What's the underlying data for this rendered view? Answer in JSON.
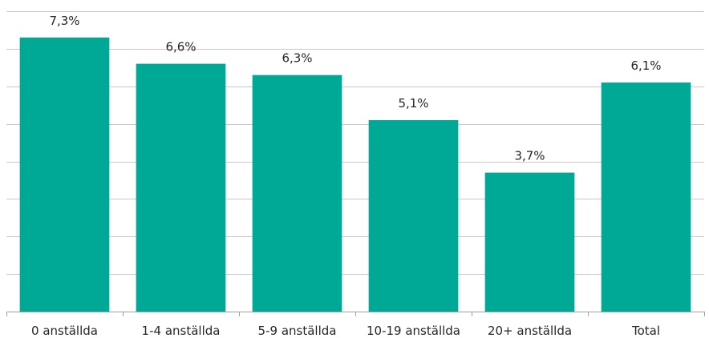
{
  "chart_data": {
    "type": "bar",
    "title": "",
    "xlabel": "",
    "ylabel": "",
    "categories": [
      "0 anställda",
      "1-4 anställda",
      "5-9 anställda",
      "10-19 anställda",
      "20+ anställda",
      "Total"
    ],
    "values": [
      7.3,
      6.6,
      6.3,
      5.1,
      3.7,
      6.1
    ],
    "data_labels": [
      "7,3%",
      "6,6%",
      "6,3%",
      "5,1%",
      "3,7%",
      "6,1%"
    ],
    "ylim": [
      0,
      8
    ],
    "y_grid_step": 1,
    "grid": true,
    "legend": "none",
    "colors": {
      "bar": "#00a896",
      "grid": "#c8c8c8",
      "axis": "#a0a0a0",
      "text": "#262626"
    }
  }
}
